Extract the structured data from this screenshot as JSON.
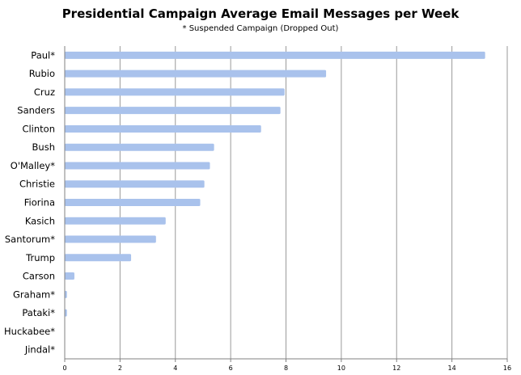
{
  "chart_data": {
    "type": "bar",
    "orientation": "horizontal",
    "title": "Presidential Campaign Average Email Messages per Week",
    "subtitle": "* Suspended Campaign (Dropped Out)",
    "categories": [
      "Paul*",
      "Rubio",
      "Cruz",
      "Sanders",
      "Clinton",
      "Bush",
      "O'Malley*",
      "Christie",
      "Fiorina",
      "Kasich",
      "Santorum*",
      "Trump",
      "Carson",
      "Graham*",
      "Pataki*",
      "Huckabee*",
      "Jindal*"
    ],
    "values": [
      15.2,
      9.45,
      7.95,
      7.8,
      7.1,
      5.4,
      5.25,
      5.05,
      4.9,
      3.65,
      3.3,
      2.4,
      0.35,
      0.08,
      0.08,
      0,
      0
    ],
    "xlim": [
      0,
      16
    ],
    "xticks": [
      "0",
      "2",
      "4",
      "6",
      "8",
      "10",
      "12",
      "14",
      "16"
    ],
    "grid": true,
    "bar_color": "#a9c2ec"
  }
}
